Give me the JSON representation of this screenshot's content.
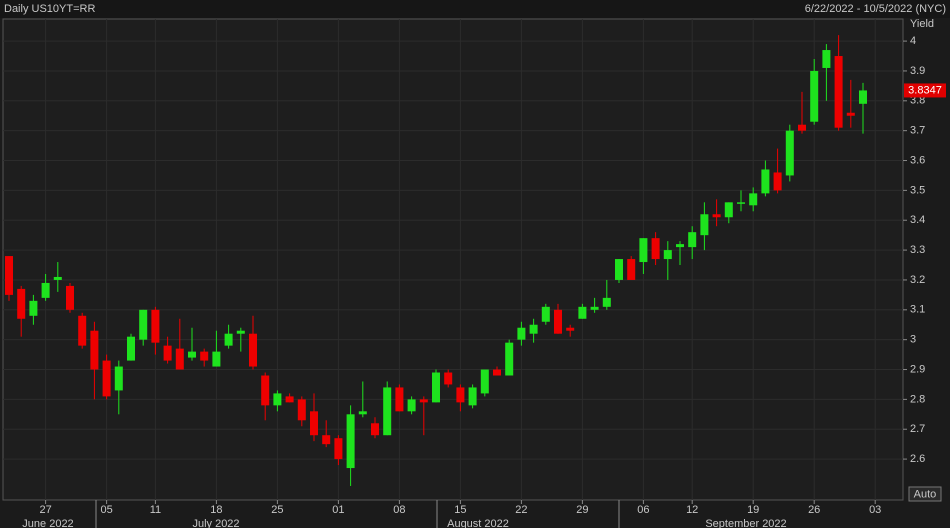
{
  "chart_data": {
    "type": "candlestick",
    "title": "Daily US10YT=RR",
    "subtitle": "6/22/2022 - 10/5/2022 (NYC)",
    "y_label": "Yield",
    "button_label": "Auto",
    "categories": [
      null,
      null,
      null,
      "27",
      null,
      null,
      null,
      null,
      "05",
      null,
      null,
      null,
      "11",
      null,
      null,
      null,
      null,
      "18",
      null,
      null,
      null,
      null,
      "25",
      null,
      null,
      null,
      null,
      "01",
      null,
      null,
      null,
      null,
      "08",
      null,
      null,
      null,
      null,
      "15",
      null,
      null,
      null,
      null,
      "22",
      null,
      null,
      null,
      null,
      "29",
      null,
      null,
      null,
      null,
      "06",
      null,
      null,
      null,
      "12",
      null,
      null,
      null,
      null,
      "19",
      null,
      null,
      null,
      null,
      "26",
      null,
      null,
      null,
      null,
      "03"
    ],
    "months": [
      "June 2022",
      "July 2022",
      "August 2022",
      "September 2022"
    ],
    "open": [
      3.28,
      3.17,
      3.08,
      3.14,
      3.2,
      3.18,
      3.08,
      3.03,
      2.93,
      2.83,
      2.93,
      3.0,
      3.1,
      2.98,
      2.97,
      2.94,
      2.96,
      2.91,
      2.98,
      3.02,
      3.02,
      2.88,
      2.78,
      2.81,
      2.8,
      2.76,
      2.68,
      2.67,
      2.57,
      2.75,
      2.72,
      2.68,
      2.84,
      2.76,
      2.8,
      2.79,
      2.89,
      2.84,
      2.78,
      2.82,
      2.9,
      2.88,
      3.0,
      3.02,
      3.06,
      3.1,
      3.04,
      3.07,
      3.1,
      3.11,
      3.2,
      3.27,
      3.26,
      3.34,
      3.27,
      3.31,
      3.31,
      3.35,
      3.42,
      3.41,
      3.46,
      3.45,
      3.49,
      3.56,
      3.55,
      3.72,
      3.73,
      3.91,
      3.95,
      3.76,
      3.79,
      null
    ],
    "high": [
      3.28,
      3.18,
      3.15,
      3.22,
      3.26,
      3.19,
      3.09,
      3.06,
      2.95,
      2.93,
      3.02,
      3.1,
      3.11,
      3.01,
      3.07,
      3.04,
      2.97,
      3.03,
      3.05,
      3.04,
      3.08,
      2.89,
      2.83,
      2.82,
      2.81,
      2.82,
      2.73,
      2.68,
      2.78,
      2.86,
      2.74,
      2.86,
      2.85,
      2.81,
      2.81,
      2.9,
      2.9,
      2.85,
      2.85,
      2.9,
      2.91,
      3.0,
      3.06,
      3.07,
      3.12,
      3.12,
      3.05,
      3.12,
      3.14,
      3.2,
      3.27,
      3.28,
      3.34,
      3.36,
      3.33,
      3.33,
      3.38,
      3.46,
      3.47,
      3.46,
      3.5,
      3.51,
      3.6,
      3.64,
      3.72,
      3.83,
      3.94,
      3.99,
      4.02,
      3.87,
      3.86,
      null
    ],
    "low": [
      3.13,
      3.01,
      3.05,
      3.13,
      3.16,
      3.09,
      2.97,
      2.8,
      2.8,
      2.75,
      2.93,
      2.98,
      2.95,
      2.92,
      2.9,
      2.93,
      2.91,
      2.91,
      2.97,
      2.96,
      2.9,
      2.73,
      2.76,
      2.79,
      2.71,
      2.66,
      2.64,
      2.58,
      2.51,
      2.74,
      2.67,
      2.68,
      2.76,
      2.75,
      2.68,
      2.79,
      2.84,
      2.76,
      2.77,
      2.81,
      2.88,
      2.88,
      2.98,
      2.99,
      3.05,
      3.02,
      3.01,
      3.07,
      3.09,
      3.1,
      3.19,
      3.2,
      3.22,
      3.25,
      3.2,
      3.25,
      3.27,
      3.3,
      3.38,
      3.39,
      3.43,
      3.43,
      3.48,
      3.49,
      3.53,
      3.69,
      3.72,
      3.8,
      3.7,
      3.71,
      3.69,
      null
    ],
    "close": [
      3.15,
      3.07,
      3.13,
      3.19,
      3.21,
      3.1,
      2.98,
      2.9,
      2.81,
      2.91,
      3.01,
      3.1,
      2.99,
      2.93,
      2.9,
      2.96,
      2.93,
      2.96,
      3.02,
      3.03,
      2.91,
      2.78,
      2.82,
      2.79,
      2.73,
      2.68,
      2.65,
      2.6,
      2.75,
      2.76,
      2.68,
      2.84,
      2.76,
      2.8,
      2.79,
      2.89,
      2.85,
      2.79,
      2.84,
      2.9,
      2.88,
      2.99,
      3.04,
      3.05,
      3.11,
      3.02,
      3.03,
      3.11,
      3.11,
      3.14,
      3.27,
      3.2,
      3.34,
      3.27,
      3.3,
      3.32,
      3.36,
      3.42,
      3.41,
      3.46,
      3.46,
      3.49,
      3.57,
      3.5,
      3.7,
      3.7,
      3.9,
      3.97,
      3.71,
      3.75,
      3.8347,
      null
    ],
    "up_color": "#1ee31e",
    "down_color": "#ee0000",
    "ylim": [
      2.463,
      4.074
    ],
    "yticks": [
      2.6,
      2.7,
      2.8,
      2.9,
      3,
      3.1,
      3.2,
      3.3,
      3.4,
      3.5,
      3.6,
      3.7,
      3.8,
      3.9,
      4
    ],
    "grid": true
  }
}
